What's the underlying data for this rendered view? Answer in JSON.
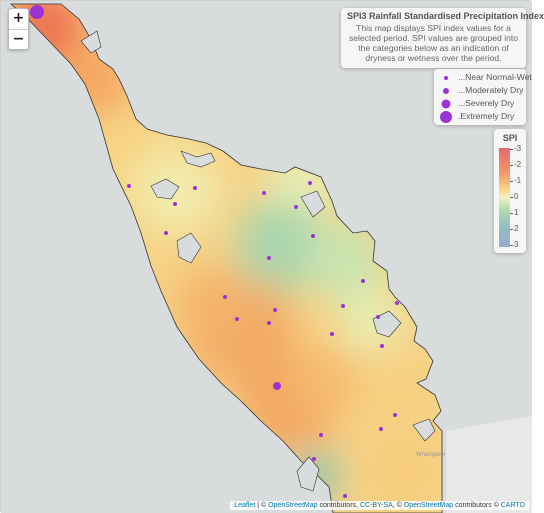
{
  "map": {
    "zoom_in_label": "+",
    "zoom_out_label": "−"
  },
  "info": {
    "title": "SPI3 Rainfall Standardised Precipitation Index",
    "description": "This map displays SPI index values for a selected period. SPI values are grouped into the categories below as an indication of dryness or wetness over the period."
  },
  "size_legend": {
    "items": [
      {
        "label": "...Near Normal-Wet"
      },
      {
        "label": "...Moderately Dry"
      },
      {
        "label": "...Severely Dry"
      },
      {
        "label": ".Extremely Dry"
      }
    ],
    "dot_color": "#9b32d8"
  },
  "color_legend": {
    "title": "SPI",
    "ticks": [
      "-3",
      "-2",
      "-1",
      "0",
      "1",
      "2",
      "3"
    ],
    "colors": [
      "#e46774",
      "#f29864",
      "#f8d98a",
      "#eff3bd",
      "#b1dcac",
      "#8fbfc3",
      "#9aa9c9"
    ]
  },
  "labels": {
    "place": "Whangarei"
  },
  "attribution": {
    "leaflet": "Leaflet",
    "sep1": " | © ",
    "osm": "OpenStreetMap",
    "mid1": " contributors, ",
    "ccbysa": "CC-BY-SA",
    "mid2": ", © ",
    "osm2": "OpenStreetMap",
    "mid3": " contributors © ",
    "carto": "CARTO"
  }
}
